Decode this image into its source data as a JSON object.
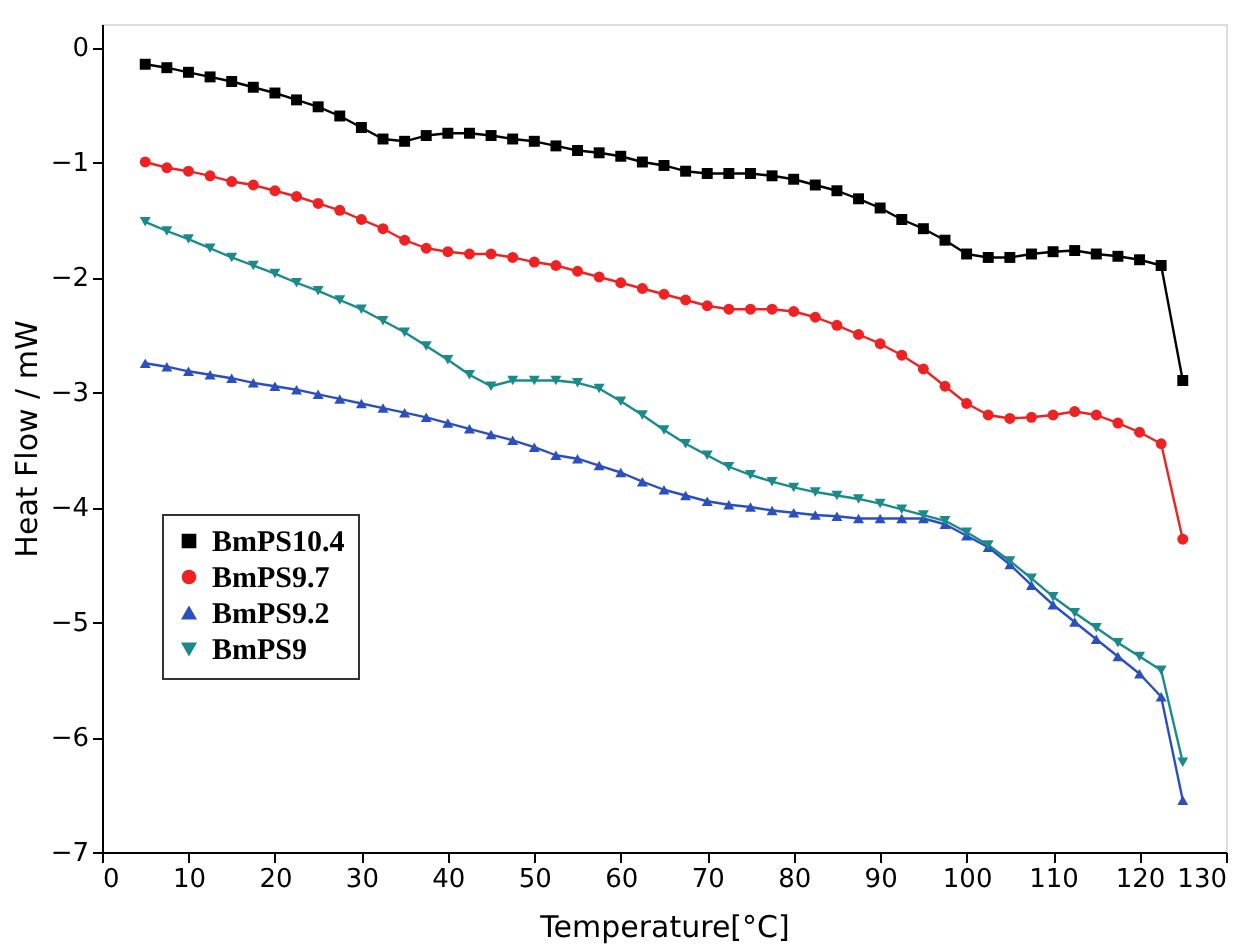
{
  "chart_data": {
    "type": "line",
    "xlabel": "Temperature[°C]",
    "ylabel": "Heat Flow / mW",
    "x": [
      5,
      7.5,
      10,
      12.5,
      15,
      17.5,
      20,
      22.5,
      25,
      27.5,
      30,
      32.5,
      35,
      37.5,
      40,
      42.5,
      45,
      47.5,
      50,
      52.5,
      55,
      57.5,
      60,
      62.5,
      65,
      67.5,
      70,
      72.5,
      75,
      77.5,
      80,
      82.5,
      85,
      87.5,
      90,
      92.5,
      95,
      97.5,
      100,
      102.5,
      105,
      107.5,
      110,
      112.5,
      115,
      117.5,
      120,
      122.5,
      125
    ],
    "series": [
      {
        "name": "BmPS10.4",
        "color": "#000000",
        "marker": "square",
        "values": [
          -0.15,
          -0.18,
          -0.22,
          -0.26,
          -0.3,
          -0.35,
          -0.4,
          -0.46,
          -0.52,
          -0.6,
          -0.7,
          -0.8,
          -0.82,
          -0.77,
          -0.75,
          -0.75,
          -0.77,
          -0.8,
          -0.82,
          -0.86,
          -0.9,
          -0.92,
          -0.95,
          -1.0,
          -1.03,
          -1.08,
          -1.1,
          -1.1,
          -1.1,
          -1.12,
          -1.15,
          -1.2,
          -1.25,
          -1.32,
          -1.4,
          -1.5,
          -1.58,
          -1.68,
          -1.8,
          -1.83,
          -1.83,
          -1.8,
          -1.78,
          -1.77,
          -1.8,
          -1.82,
          -1.85,
          -1.9,
          -2.9
        ]
      },
      {
        "name": "BmPS9.7",
        "color": "#ee2222",
        "marker": "circle",
        "values": [
          -1.0,
          -1.05,
          -1.08,
          -1.12,
          -1.17,
          -1.2,
          -1.25,
          -1.3,
          -1.36,
          -1.42,
          -1.5,
          -1.58,
          -1.68,
          -1.75,
          -1.78,
          -1.8,
          -1.8,
          -1.83,
          -1.87,
          -1.9,
          -1.95,
          -2.0,
          -2.05,
          -2.1,
          -2.15,
          -2.2,
          -2.25,
          -2.28,
          -2.28,
          -2.28,
          -2.3,
          -2.35,
          -2.42,
          -2.5,
          -2.58,
          -2.68,
          -2.8,
          -2.95,
          -3.1,
          -3.2,
          -3.23,
          -3.22,
          -3.2,
          -3.17,
          -3.2,
          -3.27,
          -3.35,
          -3.45,
          -4.28
        ]
      },
      {
        "name": "BmPS9.2",
        "color": "#2b4fc0",
        "marker": "triangle",
        "values": [
          -2.75,
          -2.78,
          -2.82,
          -2.85,
          -2.88,
          -2.92,
          -2.95,
          -2.98,
          -3.02,
          -3.06,
          -3.1,
          -3.14,
          -3.18,
          -3.22,
          -3.27,
          -3.32,
          -3.37,
          -3.42,
          -3.48,
          -3.55,
          -3.58,
          -3.64,
          -3.7,
          -3.78,
          -3.85,
          -3.9,
          -3.95,
          -3.98,
          -4.0,
          -4.03,
          -4.05,
          -4.07,
          -4.08,
          -4.1,
          -4.1,
          -4.1,
          -4.1,
          -4.15,
          -4.25,
          -4.35,
          -4.5,
          -4.68,
          -4.85,
          -5.0,
          -5.15,
          -5.3,
          -5.45,
          -5.65,
          -6.55
        ]
      },
      {
        "name": "BmPS9",
        "color": "#1a8a8a",
        "marker": "triangle-down",
        "values": [
          -1.52,
          -1.6,
          -1.67,
          -1.75,
          -1.83,
          -1.9,
          -1.97,
          -2.05,
          -2.12,
          -2.2,
          -2.28,
          -2.38,
          -2.48,
          -2.6,
          -2.72,
          -2.85,
          -2.95,
          -2.9,
          -2.9,
          -2.9,
          -2.92,
          -2.97,
          -3.08,
          -3.2,
          -3.33,
          -3.45,
          -3.55,
          -3.65,
          -3.72,
          -3.78,
          -3.83,
          -3.87,
          -3.9,
          -3.93,
          -3.97,
          -4.02,
          -4.07,
          -4.12,
          -4.22,
          -4.33,
          -4.47,
          -4.62,
          -4.78,
          -4.92,
          -5.05,
          -5.18,
          -5.3,
          -5.42,
          -6.22
        ]
      }
    ],
    "xlim": [
      0,
      130
    ],
    "xticks": [
      0,
      10,
      20,
      30,
      40,
      50,
      60,
      70,
      80,
      90,
      100,
      110,
      120,
      130
    ],
    "ylim": [
      -7,
      0.2
    ],
    "yticks": [
      -7,
      -6,
      -5,
      -4,
      -3,
      -2,
      -1,
      0
    ],
    "grid": false,
    "legend": "left",
    "line_style": "solid"
  }
}
